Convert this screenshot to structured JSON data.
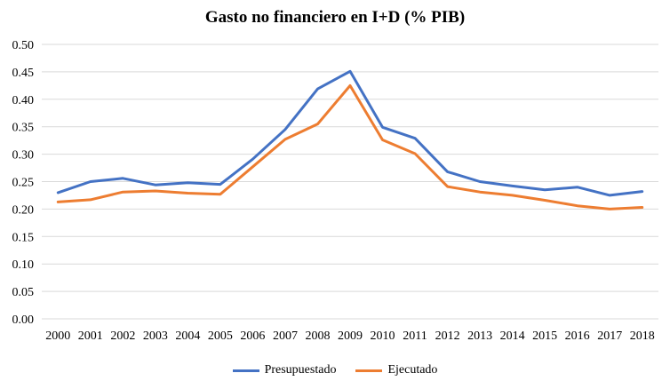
{
  "chart_data": {
    "type": "line",
    "title": "Gasto no financiero en I+D (% PIB)",
    "xlabel": "",
    "ylabel": "",
    "x": [
      "2000",
      "2001",
      "2002",
      "2003",
      "2004",
      "2005",
      "2006",
      "2007",
      "2008",
      "2009",
      "2010",
      "2011",
      "2012",
      "2013",
      "2014",
      "2015",
      "2016",
      "2017",
      "2018"
    ],
    "ylim": [
      0,
      0.5
    ],
    "yticks": [
      "0.00",
      "0.05",
      "0.10",
      "0.15",
      "0.20",
      "0.25",
      "0.30",
      "0.35",
      "0.40",
      "0.45",
      "0.50"
    ],
    "grid": "horizontal",
    "legend_position": "bottom",
    "series": [
      {
        "name": "Presupuestado",
        "color": "#4472C4",
        "values": [
          0.23,
          0.25,
          0.256,
          0.244,
          0.248,
          0.245,
          0.291,
          0.345,
          0.419,
          0.451,
          0.349,
          0.329,
          0.268,
          0.25,
          0.242,
          0.235,
          0.24,
          0.225,
          0.232
        ]
      },
      {
        "name": "Ejecutado",
        "color": "#ED7D31",
        "values": [
          0.213,
          0.217,
          0.231,
          0.233,
          0.229,
          0.227,
          0.277,
          0.327,
          0.355,
          0.425,
          0.326,
          0.301,
          0.241,
          0.231,
          0.225,
          0.216,
          0.206,
          0.2,
          0.203
        ]
      }
    ]
  }
}
